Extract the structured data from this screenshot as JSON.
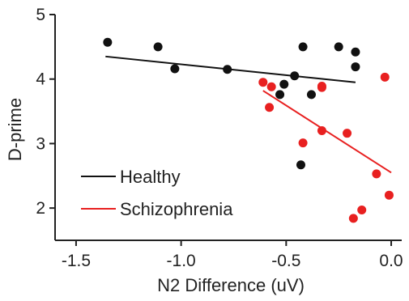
{
  "chart_data": {
    "type": "scatter",
    "xlabel": "N2 Difference (uV)",
    "ylabel": "D-prime",
    "xlim": [
      -1.6,
      0.05
    ],
    "ylim": [
      1.5,
      5
    ],
    "xticks": [
      -1.5,
      -1.0,
      -0.5,
      0.0
    ],
    "xtick_labels": [
      "-1.5",
      "-1.0",
      "-0.5",
      "0.0"
    ],
    "yticks": [
      2,
      3,
      4,
      5
    ],
    "ytick_labels": [
      "2",
      "3",
      "4",
      "5"
    ],
    "grid": false,
    "legend_position": "bottom-left",
    "series": [
      {
        "name": "Healthy",
        "color": "#111111",
        "points": [
          [
            -1.35,
            4.57
          ],
          [
            -1.11,
            4.5
          ],
          [
            -1.03,
            4.16
          ],
          [
            -0.78,
            4.15
          ],
          [
            -0.53,
            3.76
          ],
          [
            -0.51,
            3.92
          ],
          [
            -0.46,
            4.05
          ],
          [
            -0.43,
            2.67
          ],
          [
            -0.42,
            4.5
          ],
          [
            -0.38,
            3.76
          ],
          [
            -0.25,
            4.5
          ],
          [
            -0.17,
            4.42
          ],
          [
            -0.17,
            4.19
          ]
        ],
        "fit": [
          [
            -1.36,
            4.35
          ],
          [
            -0.17,
            3.95
          ]
        ]
      },
      {
        "name": "Schizophrenia",
        "color": "#e82020",
        "points": [
          [
            -0.61,
            3.95
          ],
          [
            -0.58,
            3.56
          ],
          [
            -0.57,
            3.88
          ],
          [
            -0.42,
            3.01
          ],
          [
            -0.33,
            3.87
          ],
          [
            -0.33,
            3.89
          ],
          [
            -0.33,
            3.2
          ],
          [
            -0.21,
            3.16
          ],
          [
            -0.18,
            1.84
          ],
          [
            -0.14,
            1.97
          ],
          [
            -0.07,
            2.53
          ],
          [
            -0.03,
            4.03
          ],
          [
            -0.01,
            2.2
          ]
        ],
        "fit": [
          [
            -0.61,
            3.82
          ],
          [
            0.0,
            2.55
          ]
        ]
      }
    ]
  }
}
